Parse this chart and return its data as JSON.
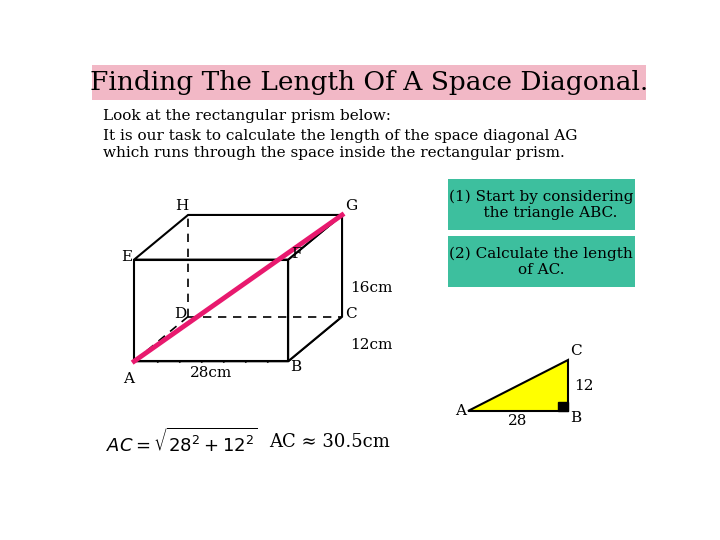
{
  "title": "Finding The Length Of A Space Diagonal.",
  "title_bg": "#f2b8c6",
  "title_fontsize": 19,
  "bg_color": "#ffffff",
  "text1": "Look at the rectangular prism below:",
  "text2": "It is our task to calculate the length of the space diagonal AG\nwhich runs through the space inside the rectangular prism.",
  "box1_text": "(1) Start by considering\n    the triangle ABC.",
  "box2_text": "(2) Calculate the length\nof AC.",
  "box_color": "#3dbf9e",
  "formula_text": "$AC = \\sqrt{28^2 + 12^2}$",
  "approx_text": "AC ≈ 30.5cm",
  "dim_28": "28cm",
  "dim_12": "12cm",
  "dim_16": "16cm",
  "label_A_prism": "A",
  "label_B_prism": "B",
  "label_C_prism": "C",
  "label_D_prism": "D",
  "label_E_prism": "E",
  "label_F_prism": "F",
  "label_G_prism": "G",
  "label_H_prism": "H",
  "label_A_tri": "A",
  "label_B_tri": "B",
  "label_C_tri": "C",
  "label_28_tri": "28",
  "label_12_tri": "12",
  "prism_teal": "#3dbf9e",
  "prism_pink": "#e8196e",
  "tri_yellow": "#ffff00",
  "tri_black": "#000000"
}
